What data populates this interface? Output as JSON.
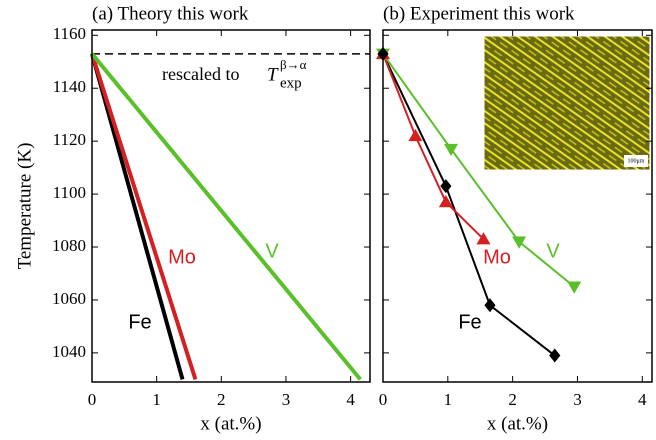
{
  "chart_data": [
    {
      "type": "line",
      "title": "(a) Theory this work",
      "y_label": "Temperature (K)",
      "x_label": "x (at.%)",
      "xlim": [
        0,
        4.3
      ],
      "ylim": [
        1029,
        1162
      ],
      "xticks": [
        0,
        1,
        2,
        3,
        4
      ],
      "yticks": [
        1040,
        1060,
        1080,
        1100,
        1120,
        1140,
        1160
      ],
      "show_ytick_labels": true,
      "reference_line": 1153,
      "annotation": {
        "text": "rescaled to",
        "symbol": "T",
        "superscript": "β→α",
        "subscript": "exp"
      },
      "series": [
        {
          "name": "Fe",
          "color": "#000000",
          "x": [
            0,
            1.4
          ],
          "values": [
            1153,
            1030
          ]
        },
        {
          "name": "Mo",
          "color": "#d42020",
          "x": [
            0,
            1.6
          ],
          "values": [
            1153,
            1030
          ]
        },
        {
          "name": "V",
          "color": "#5ac02a",
          "x": [
            0,
            4.15
          ],
          "values": [
            1153,
            1030
          ]
        }
      ]
    },
    {
      "type": "line",
      "title": "(b) Experiment this work",
      "x_label": "x (at.%)",
      "xlim": [
        0,
        4.15
      ],
      "ylim": [
        1029,
        1162
      ],
      "xticks": [
        0,
        1,
        2,
        3,
        4
      ],
      "yticks": [
        1040,
        1060,
        1080,
        1100,
        1120,
        1140,
        1160
      ],
      "show_ytick_labels": false,
      "inset_label": "100μm",
      "series": [
        {
          "name": "Fe",
          "color": "#000000",
          "marker": "diamond",
          "x": [
            0,
            0.97,
            1.65,
            2.65
          ],
          "values": [
            1153,
            1103,
            1058,
            1039
          ]
        },
        {
          "name": "Mo",
          "color": "#d42020",
          "marker": "triangle-up",
          "x": [
            0,
            0.5,
            0.97,
            1.55
          ],
          "values": [
            1153,
            1122,
            1097,
            1083
          ]
        },
        {
          "name": "V",
          "color": "#5ac02a",
          "marker": "triangle-down",
          "x": [
            0,
            1.05,
            2.1,
            2.95
          ],
          "values": [
            1153,
            1117,
            1082,
            1065
          ]
        }
      ]
    }
  ]
}
